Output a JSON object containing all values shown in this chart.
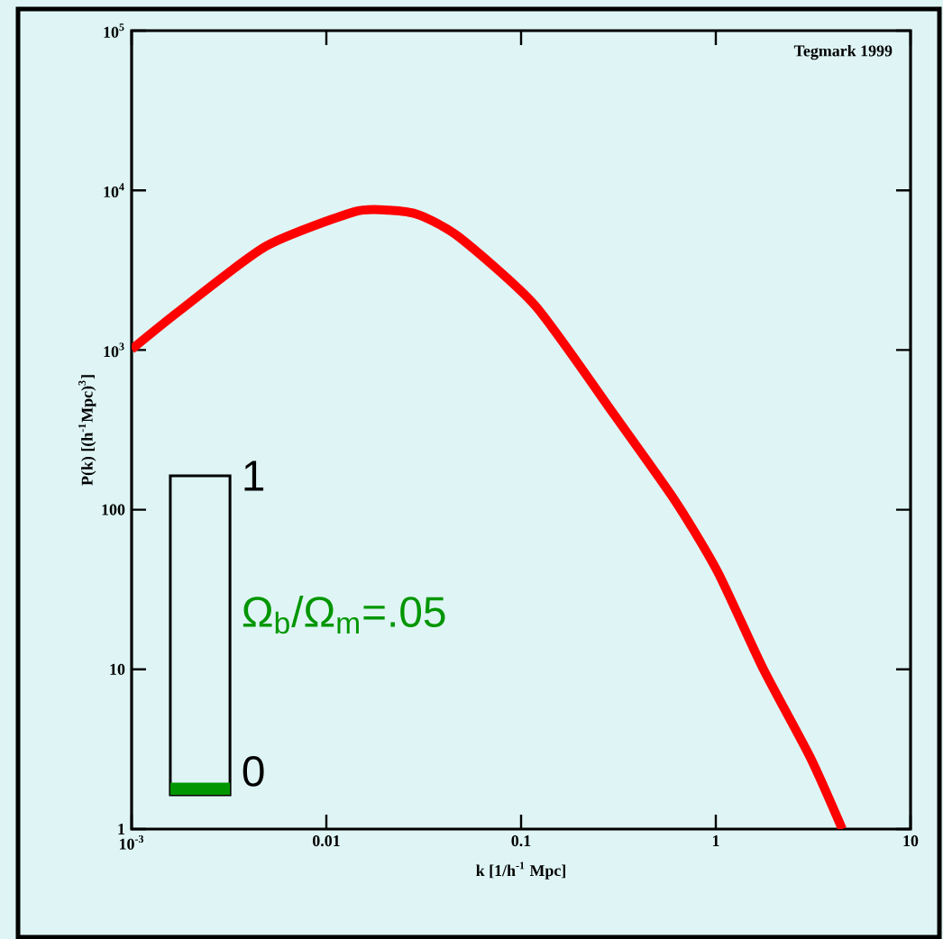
{
  "chart_data": {
    "type": "line",
    "xlabel": "k [1/h$^{-1}$ Mpc]",
    "ylabel": "P(k) [(h$^{-1}$Mpc)$^{3}$]",
    "log": "xy",
    "x": [
      0.001,
      0.00175,
      0.0049,
      0.0139,
      0.021,
      0.03,
      0.048,
      0.118,
      0.3,
      0.62,
      1.02,
      1.75,
      3.06,
      4.46
    ],
    "series": [
      {
        "color": "#ff0000",
        "values": [
          1010,
          1750,
          4470,
          7330,
          7500,
          7000,
          5100,
          1900,
          395,
          113,
          41,
          10.1,
          2.8,
          1
        ]
      }
    ],
    "xlim": [
      0.001,
      10
    ],
    "ylim": [
      1,
      100000
    ],
    "xticks": [
      {
        "value": 0.001,
        "label": "10$^{-3}$"
      },
      0.01,
      0.1,
      1,
      10
    ],
    "yticks": [
      1,
      10,
      100,
      {
        "value": 1000,
        "label": "10$^{3}$"
      },
      {
        "value": 10000,
        "label": "10$^{4}$"
      },
      {
        "value": 100000,
        "label": "10$^{5}$"
      }
    ],
    "grid": false,
    "marker": "none",
    "line_style": "solid",
    "annotations": [
      "Tegmark 1999",
      "1",
      "0",
      "Ω$_{b}$/Ω$_{m}$=.05"
    ]
  }
}
